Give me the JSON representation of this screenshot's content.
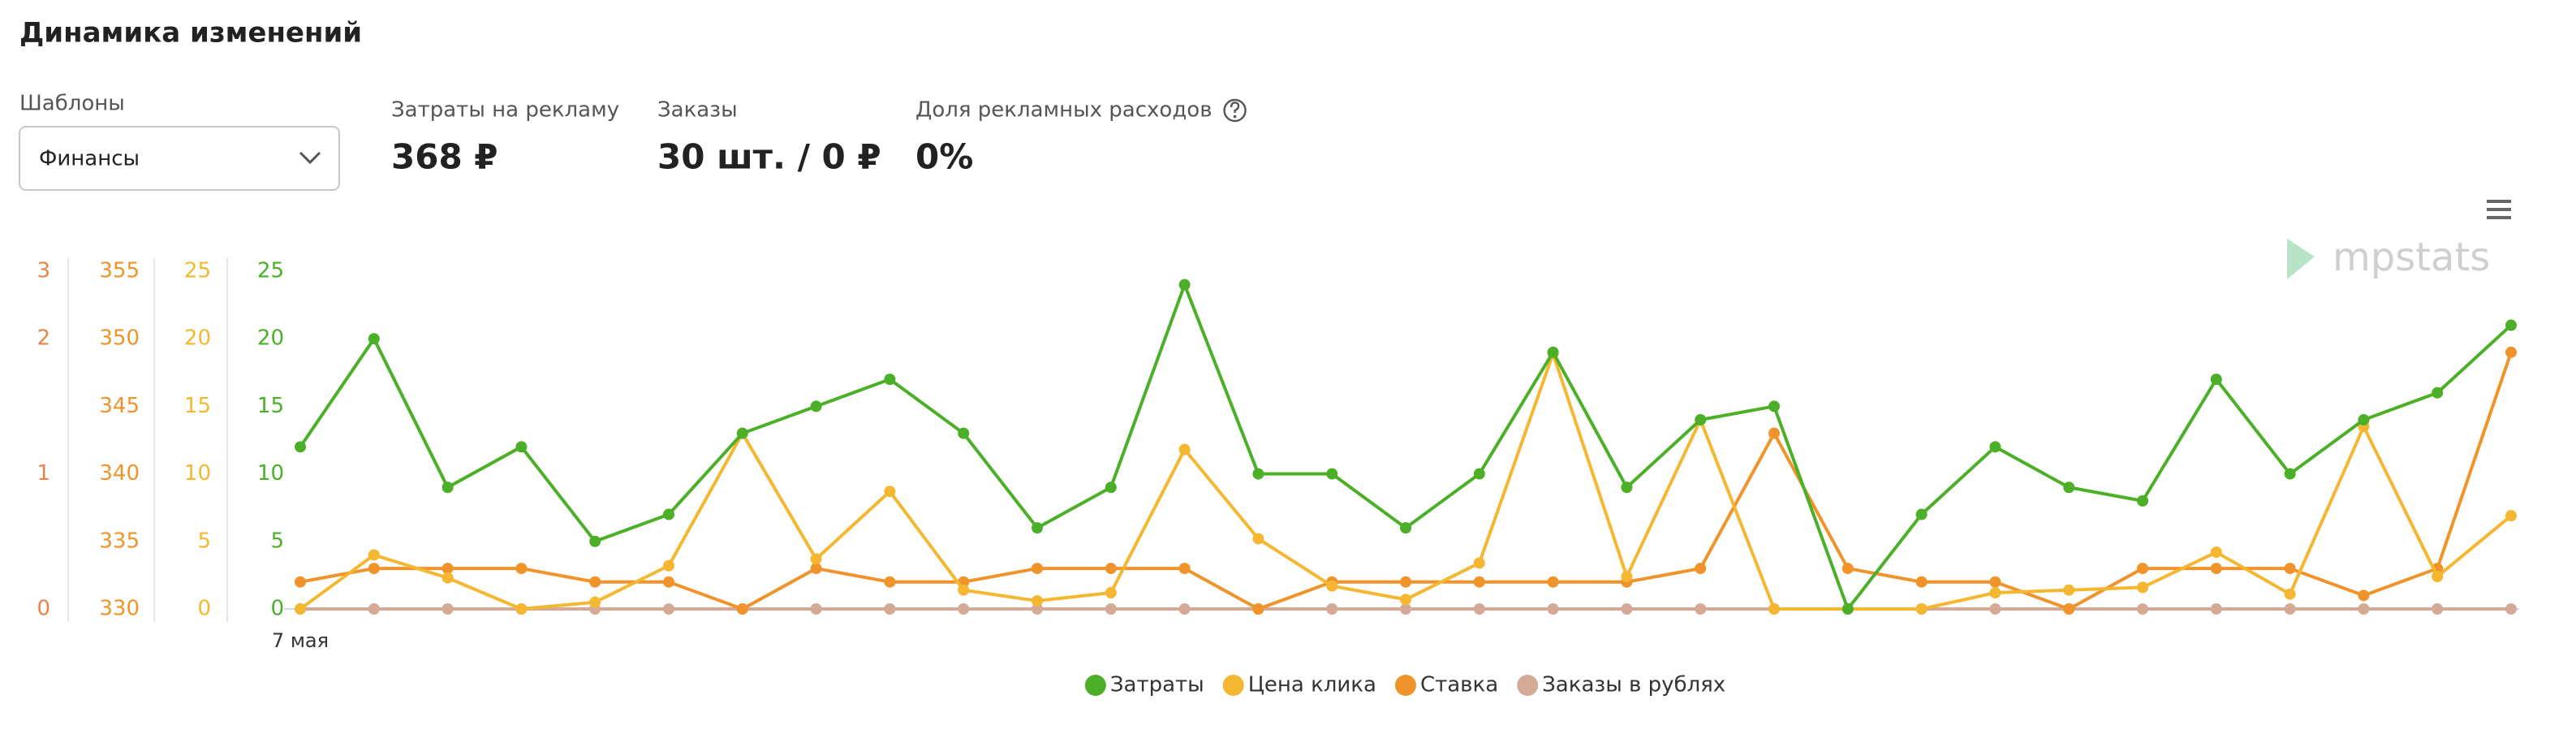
{
  "header": {
    "title": "Динамика изменений"
  },
  "filters": {
    "label": "Шаблоны",
    "value": "Финансы"
  },
  "metrics": [
    {
      "label": "Затраты на рекламу",
      "value": "368 ₽"
    },
    {
      "label": "Заказы",
      "value": "30 шт. / 0 ₽"
    },
    {
      "label": "Доля рекламных расходов",
      "value": "0%"
    }
  ],
  "chart_data": {
    "type": "line",
    "watermark": "mpstats",
    "categories": [
      "7 мая",
      null,
      null,
      null,
      null,
      null,
      null,
      null,
      null,
      null,
      null,
      null,
      null,
      null,
      null,
      null,
      null,
      null,
      null,
      null,
      null,
      null,
      null,
      null,
      null,
      null,
      null,
      null,
      null,
      null,
      null
    ],
    "axes": [
      {
        "color": "#e8844a",
        "ylim": [
          0,
          2.5
        ],
        "yticks": [
          0,
          1,
          2,
          {
            "value": 2.5,
            "label": "3"
          }
        ]
      },
      {
        "color": "#f0932b",
        "ylim": [
          330,
          355
        ],
        "yticks": [
          330,
          335,
          340,
          345,
          350,
          355
        ]
      },
      {
        "color": "#f5b731",
        "ylim": [
          0,
          25
        ],
        "yticks": [
          0,
          5,
          10,
          15,
          20,
          25
        ]
      },
      {
        "color": "#4caf28",
        "ylim": [
          0,
          25
        ],
        "yticks": [
          0,
          5,
          10,
          15,
          20,
          25
        ]
      }
    ],
    "series": [
      {
        "name": "Затраты",
        "color": "#4caf28",
        "axis": 3,
        "values": [
          12,
          20,
          9,
          12,
          5,
          7,
          13,
          15,
          17,
          13,
          6,
          9,
          24,
          10,
          10,
          6,
          10,
          19,
          9,
          14,
          15,
          0,
          7,
          12,
          9,
          8,
          17,
          10,
          14,
          16,
          21
        ]
      },
      {
        "name": "Цена клика",
        "color": "#f5b731",
        "axis": 2,
        "values": [
          0,
          4,
          2.3,
          0,
          0.5,
          3.2,
          13,
          3.7,
          8.7,
          1.4,
          0.6,
          1.2,
          11.8,
          5.2,
          1.7,
          0.7,
          3.4,
          18.9,
          2.4,
          14,
          0,
          0,
          0,
          1.2,
          1.4,
          1.6,
          4.2,
          1.1,
          13.5,
          2.4,
          6.9
        ]
      },
      {
        "name": "Ставка",
        "color": "#f0932b",
        "axis": 1,
        "values": [
          332,
          333,
          333,
          333,
          332,
          332,
          330,
          333,
          332,
          332,
          333,
          333,
          333,
          330,
          332,
          332,
          332,
          332,
          332,
          333,
          343,
          333,
          332,
          332,
          330,
          333,
          333,
          333,
          331,
          333,
          349
        ]
      },
      {
        "name": "Заказы в рублях",
        "color": "#d4aa96",
        "axis": 0,
        "values": [
          0,
          0,
          0,
          0,
          0,
          0,
          0,
          0,
          0,
          0,
          0,
          0,
          0,
          0,
          0,
          0,
          0,
          0,
          0,
          0,
          0,
          0,
          0,
          0,
          0,
          0,
          0,
          0,
          0,
          0,
          0
        ]
      }
    ]
  }
}
